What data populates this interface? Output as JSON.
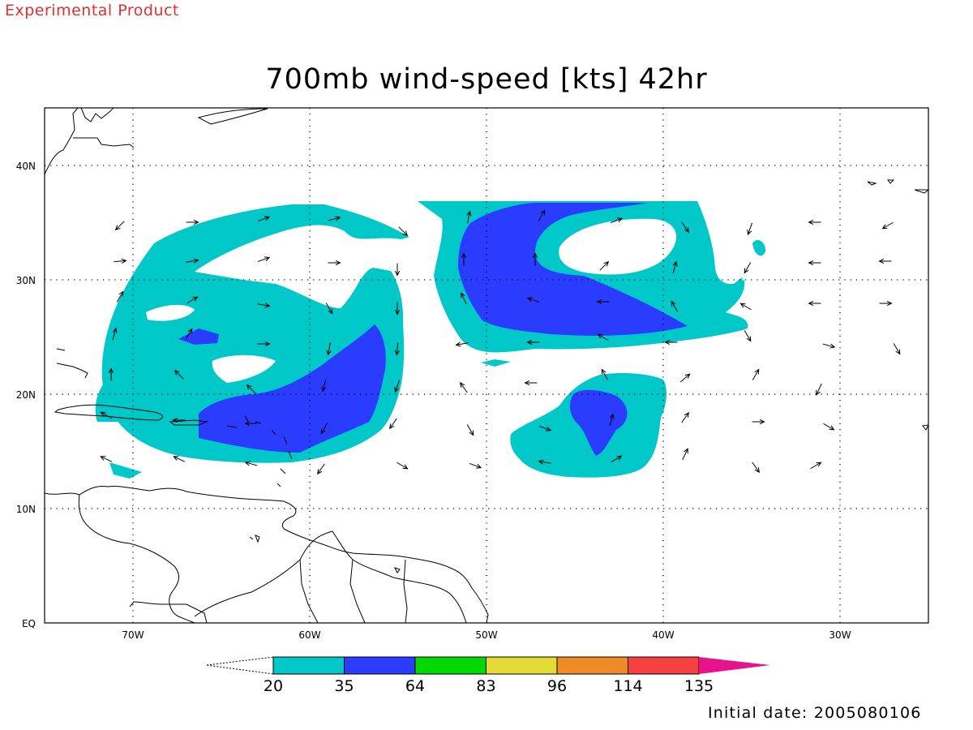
{
  "header": {
    "experimental": "Experimental Product"
  },
  "map": {
    "title": "700mb wind-speed [kts] 42hr",
    "lon_labels": [
      "70W",
      "60W",
      "50W",
      "40W",
      "30W"
    ],
    "lat_labels": [
      "EQ",
      "10N",
      "20N",
      "30N",
      "40N"
    ],
    "lon_range": [
      -75,
      -25
    ],
    "lat_range": [
      0,
      45
    ],
    "grid": "dotted",
    "colors": {
      "cyan": "#00c8c8",
      "blue": "#2a3cff"
    }
  },
  "colorbar": {
    "labels": [
      "20",
      "35",
      "64",
      "83",
      "96",
      "114",
      "135"
    ],
    "colors": [
      "#00c8c8",
      "#2a3cff",
      "#00d800",
      "#e4dc36",
      "#f08a24",
      "#f84040",
      "#e8128a"
    ]
  },
  "footer": {
    "initial_date": "Initial date: 2005080106"
  }
}
